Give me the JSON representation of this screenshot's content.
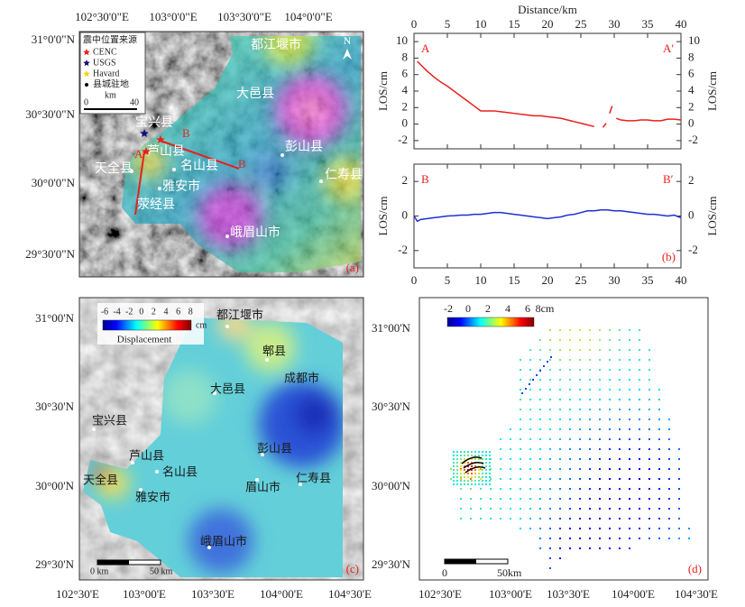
{
  "panel_a": {
    "top_labels": [
      "102°30'0\"E",
      "103°0'0\"E",
      "103°30'0\"E",
      "104°0'0\"E"
    ],
    "left_labels": [
      "31°0'0\"N",
      "30°30'0\"N",
      "30°0'0\"N",
      "29°30'0\"N"
    ],
    "legend": {
      "title": "震中位置来源",
      "items": [
        "CENC",
        "USGS",
        "Havard",
        "县城驻地"
      ],
      "scale": [
        "0",
        "km",
        "40"
      ]
    },
    "north": "N",
    "places": [
      "都江堰市",
      "大邑县",
      "宝兴县",
      "芦山县",
      "彭山县",
      "名山县",
      "天全县",
      "雅安市",
      "仁寿县",
      "荥经县",
      "峨眉山市"
    ],
    "profile_labels": [
      "B",
      "A",
      "B"
    ],
    "panel_label": "(a)"
  },
  "chart_data": [
    {
      "type": "line",
      "top_axis_label": "Distance/km",
      "ylabel": "LOS/cm",
      "y2label": "LOS/cm",
      "start_label": "A",
      "end_label": "A′",
      "xaxis_position": "top",
      "x": [
        0.5,
        1,
        2,
        3,
        4,
        5,
        6,
        7,
        8,
        9,
        10,
        11,
        12,
        13,
        14,
        15,
        16,
        17,
        18,
        19,
        20,
        21,
        22,
        23,
        24,
        25,
        26,
        27,
        27.5,
        28.3,
        28.8,
        29,
        29.3,
        29.7,
        30,
        30.3,
        31,
        32,
        33,
        34,
        35,
        36,
        37,
        38,
        39,
        40
      ],
      "series": [
        {
          "color": "#e8201c",
          "values": [
            7.6,
            7.2,
            6.4,
            5.7,
            5.1,
            4.6,
            4.0,
            3.4,
            2.8,
            2.2,
            1.6,
            1.6,
            1.6,
            1.5,
            1.4,
            1.3,
            1.2,
            1.1,
            1.0,
            1.0,
            0.9,
            0.8,
            0.7,
            0.5,
            0.3,
            0.1,
            -0.1,
            -0.3,
            null,
            -0.4,
            0.1,
            null,
            1.3,
            2.2,
            null,
            0.7,
            0.5,
            0.4,
            0.4,
            0.5,
            0.5,
            0.4,
            0.4,
            0.6,
            0.6,
            0.5
          ]
        }
      ],
      "xlim": [
        0,
        40
      ],
      "xticks": [
        0,
        5,
        10,
        15,
        20,
        25,
        30,
        35,
        40
      ],
      "ylim": [
        -3,
        11
      ],
      "yticks": [
        -2,
        0,
        2,
        4,
        6,
        8,
        10
      ],
      "y2lim": [
        -3,
        11
      ],
      "y2ticks": [
        -2,
        0,
        2,
        4,
        6,
        8,
        10
      ]
    },
    {
      "type": "line",
      "ylabel": "LOS/cm",
      "y2label": "LOS/cm",
      "start_label": "B",
      "end_label": "B′",
      "xaxis_position": "bottom",
      "panel_label": "(b)",
      "x": [
        0,
        0.5,
        1,
        2,
        3,
        4,
        5,
        6,
        7,
        8,
        9,
        10,
        11,
        12,
        13,
        14,
        15,
        16,
        17,
        18,
        19,
        20,
        21,
        22,
        23,
        24,
        25,
        26,
        27,
        28,
        29,
        30,
        31,
        32,
        33,
        34,
        35,
        36,
        37,
        38,
        39,
        40
      ],
      "series": [
        {
          "color": "#1f2fd6",
          "values": [
            0,
            -0.3,
            -0.2,
            -0.15,
            -0.1,
            -0.05,
            0,
            0.02,
            0.05,
            0.05,
            0.1,
            0.1,
            0.15,
            0.2,
            0.2,
            0.15,
            0.1,
            0.05,
            0,
            -0.05,
            -0.1,
            -0.15,
            -0.1,
            -0.05,
            0.05,
            0.1,
            0.2,
            0.3,
            0.3,
            0.35,
            0.35,
            0.3,
            0.3,
            0.25,
            0.2,
            0.15,
            0.1,
            0.1,
            0.05,
            0,
            0.05,
            -0.1
          ]
        }
      ],
      "xlim": [
        0,
        40
      ],
      "xticks": [
        0,
        5,
        10,
        15,
        20,
        25,
        30,
        35,
        40
      ],
      "ylim": [
        -3,
        3
      ],
      "yticks": [
        -2,
        0,
        2
      ],
      "y2lim": [
        -3,
        3
      ],
      "y2ticks": [
        -2,
        0,
        2
      ]
    }
  ],
  "panel_c": {
    "left_labels": [
      "31°00'N",
      "30°30'N",
      "30°00'N",
      "29°30'N"
    ],
    "bottom_labels": [
      "102°30'E",
      "103°00'E",
      "103°30'E",
      "104°00'E",
      "104°30'E"
    ],
    "colorbar": {
      "ticks": [
        "-6",
        "-4",
        "-2",
        "0",
        "2",
        "4",
        "6",
        "8"
      ],
      "unit": "cm",
      "label": "Displacement"
    },
    "places": [
      "都江堰市",
      "郫县",
      "成都市",
      "大邑县",
      "宝兴县",
      "芦山县",
      "彭山县",
      "名山县",
      "天全县",
      "雅安市",
      "眉山市",
      "仁寿县",
      "峨眉山市"
    ],
    "scale": [
      "0 km",
      "50 km"
    ],
    "panel_label": "(c)"
  },
  "panel_d": {
    "left_labels": [
      "31°00'N",
      "30°30'N",
      "30°00'N",
      "29°30'N"
    ],
    "bottom_labels": [
      "102°30'E",
      "103°00'E",
      "103°30'E",
      "104°00'E",
      "104°30'E"
    ],
    "colorbar": {
      "ticks": [
        "-2",
        "0",
        "2",
        "4",
        "6",
        "8cm"
      ]
    },
    "scale": [
      "0",
      "50km"
    ],
    "panel_label": "(d)"
  }
}
